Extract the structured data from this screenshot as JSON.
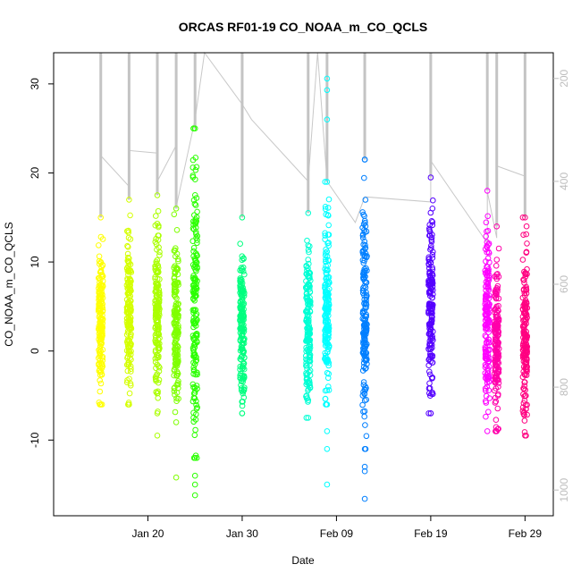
{
  "chart_data": {
    "type": "scatter",
    "title": "ORCAS RF01-19 CO_NOAA_m_CO_QCLS",
    "xlabel": "Date",
    "ylabel": "CO_NOAA_m_CO_QCLS",
    "x_ticks": [
      "Jan 20",
      "Jan 30",
      "Feb 09",
      "Feb 19",
      "Feb 29"
    ],
    "y_ticks": [
      "-10",
      "0",
      "10",
      "20",
      "30"
    ],
    "y2_ticks": [
      "200",
      "400",
      "600",
      "800",
      "1000"
    ],
    "xlim": [
      "2016-01-10",
      "2016-03-03"
    ],
    "ylim": [
      -18.5,
      33.5
    ],
    "y2lim": [
      1050,
      150
    ],
    "y2_reversed": true,
    "marker": "open-circle",
    "flights": [
      {
        "date": "2016-01-15",
        "color": "#FFFF00",
        "y_min": -6,
        "y_max": 15,
        "outliers": []
      },
      {
        "date": "2016-01-18",
        "color": "#D4FF00",
        "y_min": -6,
        "y_max": 17,
        "outliers": []
      },
      {
        "date": "2016-01-21",
        "color": "#AAFF00",
        "y_min": -7,
        "y_max": 17.5,
        "outliers": [
          -9.5
        ]
      },
      {
        "date": "2016-01-23",
        "color": "#7FFF00",
        "y_min": -8,
        "y_max": 16,
        "outliers": [
          -14.2
        ]
      },
      {
        "date": "2016-01-25",
        "color": "#2AFF00",
        "y_min": -12,
        "y_max": 25,
        "outliers": [
          -14,
          -15,
          -16.2
        ]
      },
      {
        "date": "2016-01-30",
        "color": "#00FF7F",
        "y_min": -7,
        "y_max": 15,
        "outliers": []
      },
      {
        "date": "2016-02-06",
        "color": "#00FFD4",
        "y_min": -7.5,
        "y_max": 15.5,
        "outliers": []
      },
      {
        "date": "2016-02-08",
        "color": "#00FFFF",
        "y_min": -6,
        "y_max": 19,
        "outliers": [
          -9,
          -11,
          -15,
          26,
          29.3,
          30.6
        ]
      },
      {
        "date": "2016-02-12",
        "color": "#007FFF",
        "y_min": -11,
        "y_max": 21.5,
        "outliers": [
          -13,
          -13.5,
          -16.6
        ]
      },
      {
        "date": "2016-02-19",
        "color": "#5500FF",
        "y_min": -7,
        "y_max": 19.5,
        "outliers": []
      },
      {
        "date": "2016-02-25",
        "color": "#FF00FF",
        "y_min": -9,
        "y_max": 18,
        "outliers": []
      },
      {
        "date": "2016-02-26",
        "color": "#FF00AA",
        "y_min": -9,
        "y_max": 14,
        "outliers": []
      },
      {
        "date": "2016-02-29",
        "color": "#FF0080",
        "y_min": -9.5,
        "y_max": 15,
        "outliers": []
      }
    ],
    "pressure_trace": {
      "color": "#c8c8c8",
      "points": [
        [
          "2016-01-15",
          350
        ],
        [
          "2016-01-18",
          410
        ],
        [
          "2016-01-18",
          340
        ],
        [
          "2016-01-21",
          345
        ],
        [
          "2016-01-21",
          400
        ],
        [
          "2016-01-23",
          330
        ],
        [
          "2016-01-23",
          450
        ],
        [
          "2016-01-25",
          280
        ],
        [
          "2016-01-26",
          150
        ],
        [
          "2016-01-30",
          250
        ],
        [
          "2016-01-31",
          280
        ],
        [
          "2016-02-06",
          400
        ],
        [
          "2016-02-07",
          150
        ],
        [
          "2016-02-08",
          400
        ],
        [
          "2016-02-11",
          480
        ],
        [
          "2016-02-12",
          430
        ],
        [
          "2016-02-19",
          440
        ],
        [
          "2016-02-19",
          360
        ],
        [
          "2016-02-25",
          520
        ],
        [
          "2016-02-25",
          420
        ],
        [
          "2016-02-26",
          510
        ],
        [
          "2016-02-26",
          370
        ],
        [
          "2016-02-29",
          390
        ]
      ]
    },
    "grid": false,
    "legend": "none"
  }
}
